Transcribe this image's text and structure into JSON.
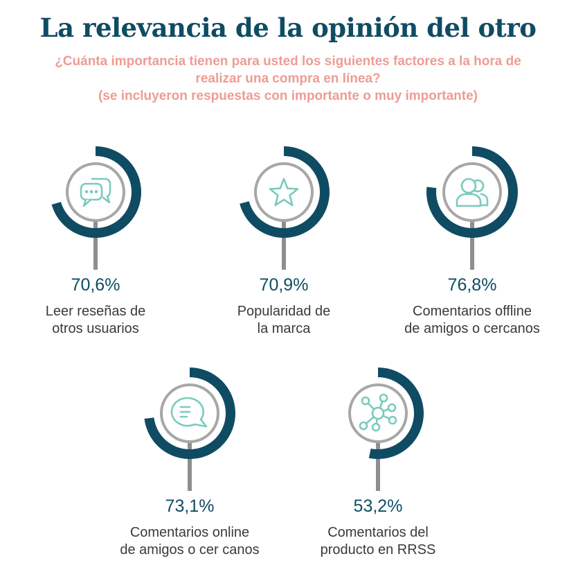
{
  "header": {
    "title": "La relevancia de la opinión del otro",
    "subtitle_lines": [
      "¿Cuánta importancia tienen para usted los siguientes factores a la hora de",
      "realizar una compra en línea?",
      "(se incluyeron respuestas con importante o muy importante)"
    ]
  },
  "colors": {
    "title": "#0f4c63",
    "subtitle": "#ee9c93",
    "arc": "#0f4c63",
    "ring": "#a7a7a7",
    "stem": "#8e8e8e",
    "icon": "#79cbbb",
    "value_text": "#0f4c63",
    "label_text": "#3a3a3a"
  },
  "chart_data": {
    "type": "radial-progress",
    "unit": "%",
    "items": [
      {
        "value": 70.6,
        "value_label": "70,6%",
        "label_lines": [
          "Leer reseñas de",
          "otros usuarios"
        ],
        "icon": "chat-bubbles-icon"
      },
      {
        "value": 70.9,
        "value_label": "70,9%",
        "label_lines": [
          "Popularidad de",
          "la marca"
        ],
        "icon": "star-icon"
      },
      {
        "value": 76.8,
        "value_label": "76,8%",
        "label_lines": [
          "Comentarios offline",
          "de amigos o cercanos"
        ],
        "icon": "users-icon"
      },
      {
        "value": 73.1,
        "value_label": "73,1%",
        "label_lines": [
          "Comentarios online",
          "de amigos o cer canos"
        ],
        "icon": "message-icon"
      },
      {
        "value": 53.2,
        "value_label": "53,2%",
        "label_lines": [
          "Comentarios del",
          "producto en RRSS"
        ],
        "icon": "network-icon"
      }
    ]
  }
}
